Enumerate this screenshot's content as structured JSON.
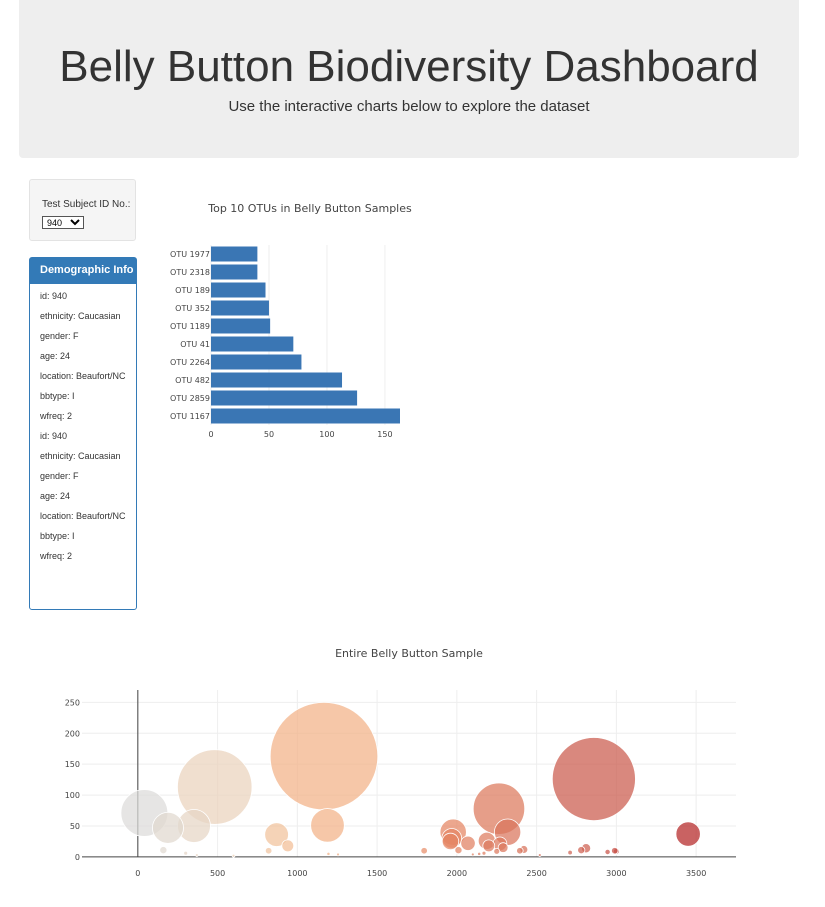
{
  "header": {
    "title": "Belly Button Biodiversity Dashboard",
    "subtitle": "Use the interactive charts below to explore the dataset"
  },
  "selector": {
    "label": "Test Subject ID No.:",
    "selected": "940"
  },
  "demographics": {
    "title": "Demographic Info",
    "items": [
      "id: 940",
      "ethnicity: Caucasian",
      "gender: F",
      "age: 24",
      "location: Beaufort/NC",
      "bbtype: I",
      "wfreq: 2",
      "id: 940",
      "ethnicity: Caucasian",
      "gender: F",
      "age: 24",
      "location: Beaufort/NC",
      "bbtype: I",
      "wfreq: 2"
    ]
  },
  "colors": {
    "bar": "#3a76b4",
    "panel": "#337ab7",
    "header_bg": "#eeeeee"
  },
  "chart_data": [
    {
      "type": "bar",
      "orientation": "horizontal",
      "title": "Top 10 OTUs in Belly Button Samples",
      "categories": [
        "OTU 1167",
        "OTU 2859",
        "OTU 482",
        "OTU 2264",
        "OTU 41",
        "OTU 1189",
        "OTU 352",
        "OTU 189",
        "OTU 2318",
        "OTU 1977"
      ],
      "values": [
        163,
        126,
        113,
        78,
        71,
        51,
        50,
        47,
        40,
        40
      ],
      "xlim": [
        0,
        163
      ],
      "xticks": [
        0,
        50,
        100,
        150
      ]
    },
    {
      "type": "scatter",
      "title": "Entire Belly Button Sample",
      "xlim": [
        -350,
        3750
      ],
      "ylim": [
        -5,
        270
      ],
      "xticks": [
        0,
        500,
        1000,
        1500,
        2000,
        2500,
        3000,
        3500
      ],
      "yticks": [
        0,
        50,
        100,
        150,
        200,
        250
      ],
      "points": [
        {
          "x": 1167,
          "y": 163,
          "size": 163
        },
        {
          "x": 2859,
          "y": 126,
          "size": 126
        },
        {
          "x": 482,
          "y": 113,
          "size": 113
        },
        {
          "x": 2264,
          "y": 78,
          "size": 78
        },
        {
          "x": 41,
          "y": 71,
          "size": 71
        },
        {
          "x": 1189,
          "y": 51,
          "size": 51
        },
        {
          "x": 352,
          "y": 50,
          "size": 50
        },
        {
          "x": 189,
          "y": 47,
          "size": 47
        },
        {
          "x": 2318,
          "y": 40,
          "size": 40
        },
        {
          "x": 1977,
          "y": 40,
          "size": 40
        },
        {
          "x": 3450,
          "y": 37,
          "size": 37
        },
        {
          "x": 870,
          "y": 36,
          "size": 36
        },
        {
          "x": 1968,
          "y": 30,
          "size": 30
        },
        {
          "x": 1960,
          "y": 25,
          "size": 25
        },
        {
          "x": 2188,
          "y": 26,
          "size": 26
        },
        {
          "x": 2070,
          "y": 22,
          "size": 22
        },
        {
          "x": 2270,
          "y": 21,
          "size": 21
        },
        {
          "x": 940,
          "y": 18,
          "size": 18
        },
        {
          "x": 2200,
          "y": 18,
          "size": 18
        },
        {
          "x": 2290,
          "y": 15,
          "size": 15
        },
        {
          "x": 2420,
          "y": 12,
          "size": 12
        },
        {
          "x": 2810,
          "y": 14,
          "size": 14
        },
        {
          "x": 2010,
          "y": 11,
          "size": 11
        },
        {
          "x": 2395,
          "y": 10,
          "size": 10
        },
        {
          "x": 2780,
          "y": 11,
          "size": 11
        },
        {
          "x": 1795,
          "y": 10,
          "size": 10
        },
        {
          "x": 3000,
          "y": 9,
          "size": 9
        },
        {
          "x": 2250,
          "y": 9,
          "size": 9
        },
        {
          "x": 160,
          "y": 11,
          "size": 11
        },
        {
          "x": 820,
          "y": 10,
          "size": 10
        },
        {
          "x": 2945,
          "y": 8,
          "size": 8
        },
        {
          "x": 2990,
          "y": 10,
          "size": 10
        },
        {
          "x": 2710,
          "y": 7,
          "size": 7
        },
        {
          "x": 300,
          "y": 6,
          "size": 6
        },
        {
          "x": 1195,
          "y": 5,
          "size": 5
        },
        {
          "x": 2170,
          "y": 6,
          "size": 6
        },
        {
          "x": 2140,
          "y": 5,
          "size": 5
        },
        {
          "x": 1255,
          "y": 4,
          "size": 4
        },
        {
          "x": 370,
          "y": 3,
          "size": 3
        },
        {
          "x": 2100,
          "y": 4,
          "size": 4
        },
        {
          "x": 2520,
          "y": 3,
          "size": 3
        },
        {
          "x": 600,
          "y": 2,
          "size": 2
        }
      ]
    }
  ]
}
